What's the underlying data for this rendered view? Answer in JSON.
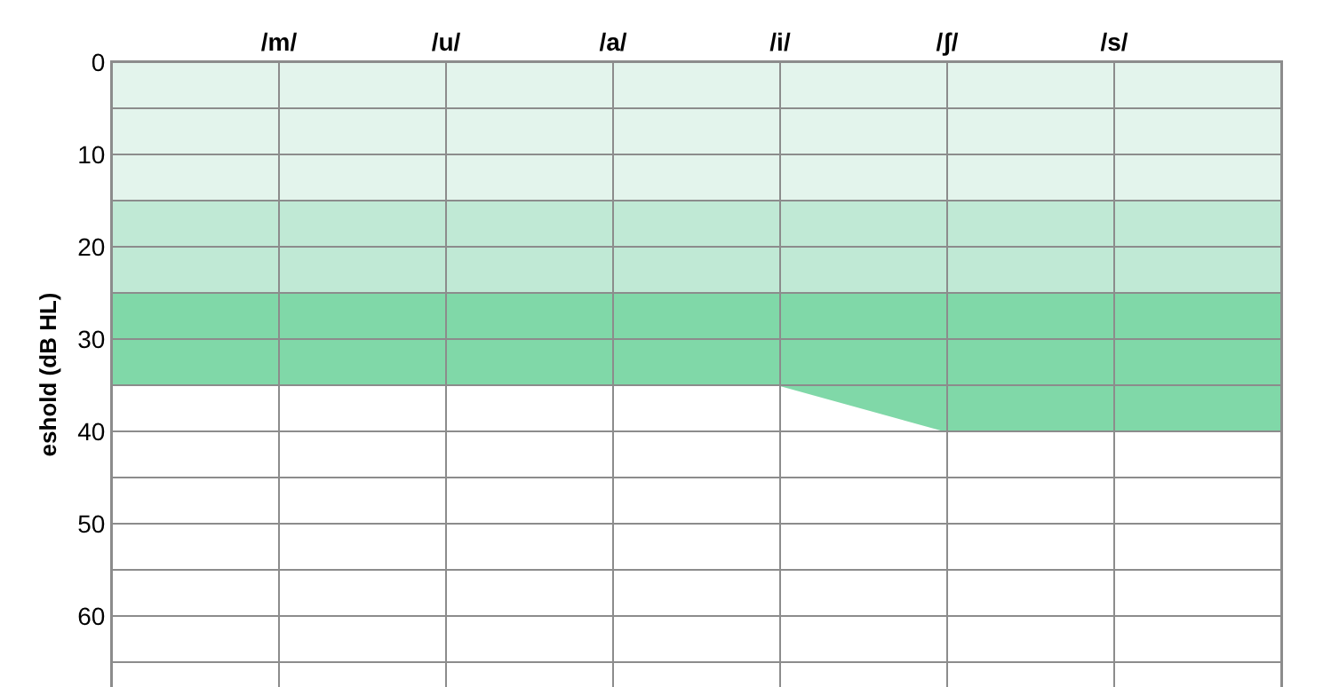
{
  "chart_data": {
    "type": "area",
    "ylabel": "eshold (dB HL)",
    "categories": [
      null,
      "/m/",
      "/u/",
      "/a/",
      "/i/",
      "/ʃ/",
      "/s/",
      null
    ],
    "ylim": [
      67.7,
      0
    ],
    "yticks": [
      0,
      {
        "value": 5,
        "label": null
      },
      10,
      {
        "value": 15,
        "label": null
      },
      20,
      {
        "value": 25,
        "label": null
      },
      30,
      {
        "value": 35,
        "label": null
      },
      40,
      {
        "value": 45,
        "label": null
      },
      50,
      {
        "value": 55,
        "label": null
      },
      60,
      {
        "value": 65,
        "label": null
      }
    ],
    "series": [
      {
        "color": "#80d8a8",
        "values": [
          35,
          35,
          35,
          35,
          35,
          40,
          40,
          40
        ]
      },
      {
        "color": "#c0e9d5",
        "values": [
          25,
          25,
          25,
          25,
          25,
          25,
          25,
          25
        ]
      },
      {
        "color": "#e3f4ec",
        "values": [
          15,
          15,
          15,
          15,
          15,
          15,
          15,
          15
        ]
      }
    ],
    "grid": true
  }
}
